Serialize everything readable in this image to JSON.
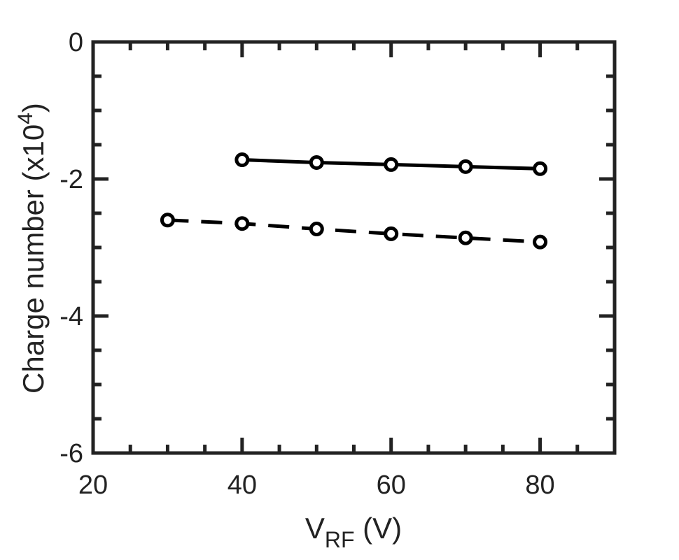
{
  "chart_data": {
    "type": "line",
    "xlabel": {
      "main": "V",
      "sub": "RF",
      "unit": " (V)"
    },
    "ylabel": {
      "main": "Charge number (x10",
      "sup": "4",
      "end": ")"
    },
    "xlim": [
      20,
      90
    ],
    "ylim": [
      -6,
      0
    ],
    "x_ticks": [
      20,
      40,
      60,
      80
    ],
    "y_ticks": [
      0,
      -2,
      -4,
      -6
    ],
    "x_minor_step": 5,
    "y_minor_step": 0.5,
    "grid": false,
    "series": [
      {
        "style": "solid",
        "marker": "circle",
        "x": [
          40,
          50,
          60,
          70,
          80
        ],
        "y": [
          -1.72,
          -1.76,
          -1.79,
          -1.82,
          -1.85
        ]
      },
      {
        "style": "dashed",
        "marker": "circle",
        "x": [
          30,
          40,
          50,
          60,
          70,
          80
        ],
        "y": [
          -2.6,
          -2.65,
          -2.73,
          -2.8,
          -2.86,
          -2.92
        ]
      }
    ]
  }
}
